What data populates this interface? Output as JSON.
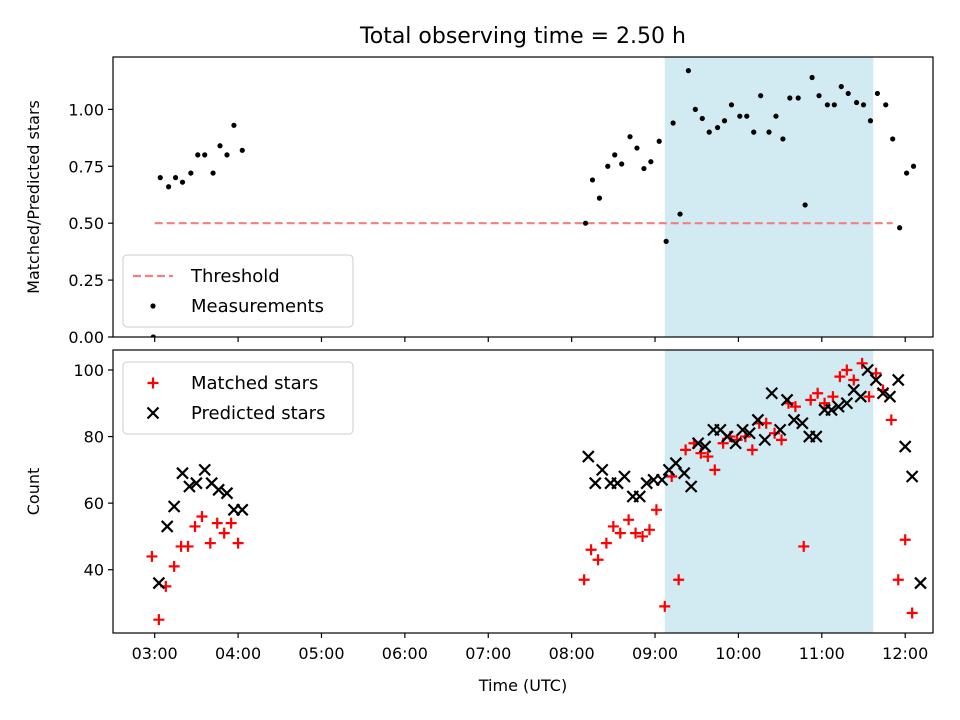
{
  "chart_data": [
    {
      "type": "scatter",
      "title": "Total observing time = 2.50 h",
      "xlabel": "",
      "ylabel": "Matched/Predicted stars",
      "xlim": [
        "02:30",
        "12:20"
      ],
      "ylim": [
        0,
        1.23
      ],
      "yticks": [
        "0.00",
        "0.25",
        "0.50",
        "0.75",
        "1.00"
      ],
      "shaded_region": {
        "from": "09:07",
        "to": "11:37",
        "color": "#add8e6"
      },
      "legend_position": "lower-left",
      "threshold": {
        "name": "Threshold",
        "value": 0.5,
        "x_range": [
          "03:00",
          "11:51"
        ],
        "color": "#f08080",
        "style": "dashed"
      },
      "series": [
        {
          "name": "Measurements",
          "color": "#000000",
          "points": [
            [
              "02:59",
              0.0
            ],
            [
              "03:04",
              0.7
            ],
            [
              "03:10",
              0.66
            ],
            [
              "03:15",
              0.7
            ],
            [
              "03:20",
              0.68
            ],
            [
              "03:26",
              0.72
            ],
            [
              "03:31",
              0.8
            ],
            [
              "03:36",
              0.8
            ],
            [
              "03:42",
              0.72
            ],
            [
              "03:47",
              0.84
            ],
            [
              "03:52",
              0.8
            ],
            [
              "03:57",
              0.93
            ],
            [
              "04:03",
              0.82
            ],
            [
              "08:10",
              0.5
            ],
            [
              "08:15",
              0.69
            ],
            [
              "08:20",
              0.61
            ],
            [
              "08:26",
              0.75
            ],
            [
              "08:31",
              0.8
            ],
            [
              "08:36",
              0.76
            ],
            [
              "08:42",
              0.88
            ],
            [
              "08:47",
              0.83
            ],
            [
              "08:52",
              0.74
            ],
            [
              "08:57",
              0.77
            ],
            [
              "09:03",
              0.86
            ],
            [
              "09:08",
              0.42
            ],
            [
              "09:13",
              0.94
            ],
            [
              "09:18",
              0.54
            ],
            [
              "09:24",
              1.17
            ],
            [
              "09:29",
              1.0
            ],
            [
              "09:34",
              0.96
            ],
            [
              "09:39",
              0.9
            ],
            [
              "09:45",
              0.92
            ],
            [
              "09:50",
              0.95
            ],
            [
              "09:55",
              1.02
            ],
            [
              "10:01",
              0.97
            ],
            [
              "10:06",
              0.97
            ],
            [
              "10:11",
              0.9
            ],
            [
              "10:16",
              1.06
            ],
            [
              "10:22",
              0.9
            ],
            [
              "10:27",
              0.97
            ],
            [
              "10:32",
              0.87
            ],
            [
              "10:37",
              1.05
            ],
            [
              "10:43",
              1.05
            ],
            [
              "10:48",
              0.58
            ],
            [
              "10:53",
              1.14
            ],
            [
              "10:58",
              1.06
            ],
            [
              "11:04",
              1.02
            ],
            [
              "11:09",
              1.02
            ],
            [
              "11:14",
              1.1
            ],
            [
              "11:19",
              1.07
            ],
            [
              "11:25",
              1.03
            ],
            [
              "11:30",
              1.02
            ],
            [
              "11:35",
              0.95
            ],
            [
              "11:40",
              1.07
            ],
            [
              "11:46",
              1.02
            ],
            [
              "11:51",
              0.87
            ],
            [
              "11:56",
              0.48
            ],
            [
              "12:01",
              0.72
            ],
            [
              "12:06",
              0.75
            ]
          ]
        }
      ]
    },
    {
      "type": "scatter",
      "title": "",
      "xlabel": "Time (UTC)",
      "ylabel": "Count",
      "xlim": [
        "02:30",
        "12:20"
      ],
      "xticks": [
        "03:00",
        "04:00",
        "05:00",
        "06:00",
        "07:00",
        "08:00",
        "09:00",
        "10:00",
        "11:00",
        "12:00"
      ],
      "ylim": [
        21,
        106
      ],
      "yticks": [
        "40",
        "60",
        "80",
        "100"
      ],
      "shaded_region": {
        "from": "09:07",
        "to": "11:37",
        "color": "#add8e6"
      },
      "legend_position": "upper-left",
      "series": [
        {
          "name": "Matched stars",
          "marker": "plus",
          "color": "#ff0000",
          "points": [
            [
              "02:58",
              44
            ],
            [
              "03:03",
              25
            ],
            [
              "03:08",
              35
            ],
            [
              "03:14",
              41
            ],
            [
              "03:19",
              47
            ],
            [
              "03:24",
              47
            ],
            [
              "03:29",
              53
            ],
            [
              "03:34",
              56
            ],
            [
              "03:40",
              48
            ],
            [
              "03:45",
              54
            ],
            [
              "03:50",
              51
            ],
            [
              "03:55",
              54
            ],
            [
              "04:00",
              48
            ],
            [
              "08:09",
              37
            ],
            [
              "08:14",
              46
            ],
            [
              "08:19",
              43
            ],
            [
              "08:25",
              48
            ],
            [
              "08:30",
              53
            ],
            [
              "08:35",
              51
            ],
            [
              "08:41",
              55
            ],
            [
              "08:46",
              51
            ],
            [
              "08:51",
              50
            ],
            [
              "08:56",
              52
            ],
            [
              "09:01",
              58
            ],
            [
              "09:07",
              29
            ],
            [
              "09:12",
              68
            ],
            [
              "09:17",
              37
            ],
            [
              "09:22",
              76
            ],
            [
              "09:28",
              78
            ],
            [
              "09:33",
              75
            ],
            [
              "09:38",
              74
            ],
            [
              "09:43",
              70
            ],
            [
              "09:49",
              78
            ],
            [
              "09:54",
              80
            ],
            [
              "09:59",
              79
            ],
            [
              "10:05",
              80
            ],
            [
              "10:10",
              76
            ],
            [
              "10:15",
              84
            ],
            [
              "10:20",
              84
            ],
            [
              "10:26",
              81
            ],
            [
              "10:31",
              79
            ],
            [
              "10:36",
              90
            ],
            [
              "10:41",
              89
            ],
            [
              "10:47",
              47
            ],
            [
              "10:52",
              91
            ],
            [
              "10:57",
              93
            ],
            [
              "11:02",
              90
            ],
            [
              "11:08",
              92
            ],
            [
              "11:13",
              98
            ],
            [
              "11:18",
              100
            ],
            [
              "11:23",
              97
            ],
            [
              "11:29",
              102
            ],
            [
              "11:34",
              92
            ],
            [
              "11:39",
              99
            ],
            [
              "11:44",
              94
            ],
            [
              "11:50",
              85
            ],
            [
              "11:55",
              37
            ],
            [
              "12:00",
              49
            ],
            [
              "12:05",
              27
            ]
          ]
        },
        {
          "name": "Predicted stars",
          "marker": "x",
          "color": "#000000",
          "points": [
            [
              "03:03",
              36
            ],
            [
              "03:09",
              53
            ],
            [
              "03:14",
              59
            ],
            [
              "03:20",
              69
            ],
            [
              "03:25",
              65
            ],
            [
              "03:30",
              66
            ],
            [
              "03:36",
              70
            ],
            [
              "03:41",
              66
            ],
            [
              "03:46",
              64
            ],
            [
              "03:52",
              63
            ],
            [
              "03:57",
              58
            ],
            [
              "04:03",
              58
            ],
            [
              "08:12",
              74
            ],
            [
              "08:17",
              66
            ],
            [
              "08:22",
              70
            ],
            [
              "08:28",
              66
            ],
            [
              "08:33",
              66
            ],
            [
              "08:38",
              68
            ],
            [
              "08:44",
              62
            ],
            [
              "08:49",
              62
            ],
            [
              "08:54",
              66
            ],
            [
              "08:59",
              67
            ],
            [
              "09:05",
              67
            ],
            [
              "09:10",
              70
            ],
            [
              "09:15",
              72
            ],
            [
              "09:21",
              69
            ],
            [
              "09:26",
              65
            ],
            [
              "09:31",
              78
            ],
            [
              "09:36",
              77
            ],
            [
              "09:42",
              82
            ],
            [
              "09:47",
              82
            ],
            [
              "09:52",
              80
            ],
            [
              "09:58",
              78
            ],
            [
              "10:03",
              82
            ],
            [
              "10:08",
              81
            ],
            [
              "10:14",
              85
            ],
            [
              "10:19",
              79
            ],
            [
              "10:24",
              93
            ],
            [
              "10:30",
              82
            ],
            [
              "10:35",
              91
            ],
            [
              "10:40",
              85
            ],
            [
              "10:46",
              84
            ],
            [
              "10:51",
              80
            ],
            [
              "10:56",
              80
            ],
            [
              "11:02",
              88
            ],
            [
              "11:07",
              88
            ],
            [
              "11:12",
              89
            ],
            [
              "11:18",
              90
            ],
            [
              "11:23",
              94
            ],
            [
              "11:28",
              92
            ],
            [
              "11:33",
              100
            ],
            [
              "11:39",
              97
            ],
            [
              "11:44",
              93
            ],
            [
              "11:49",
              92
            ],
            [
              "11:55",
              97
            ],
            [
              "12:00",
              77
            ],
            [
              "12:05",
              68
            ],
            [
              "12:11",
              36
            ]
          ]
        }
      ]
    }
  ]
}
